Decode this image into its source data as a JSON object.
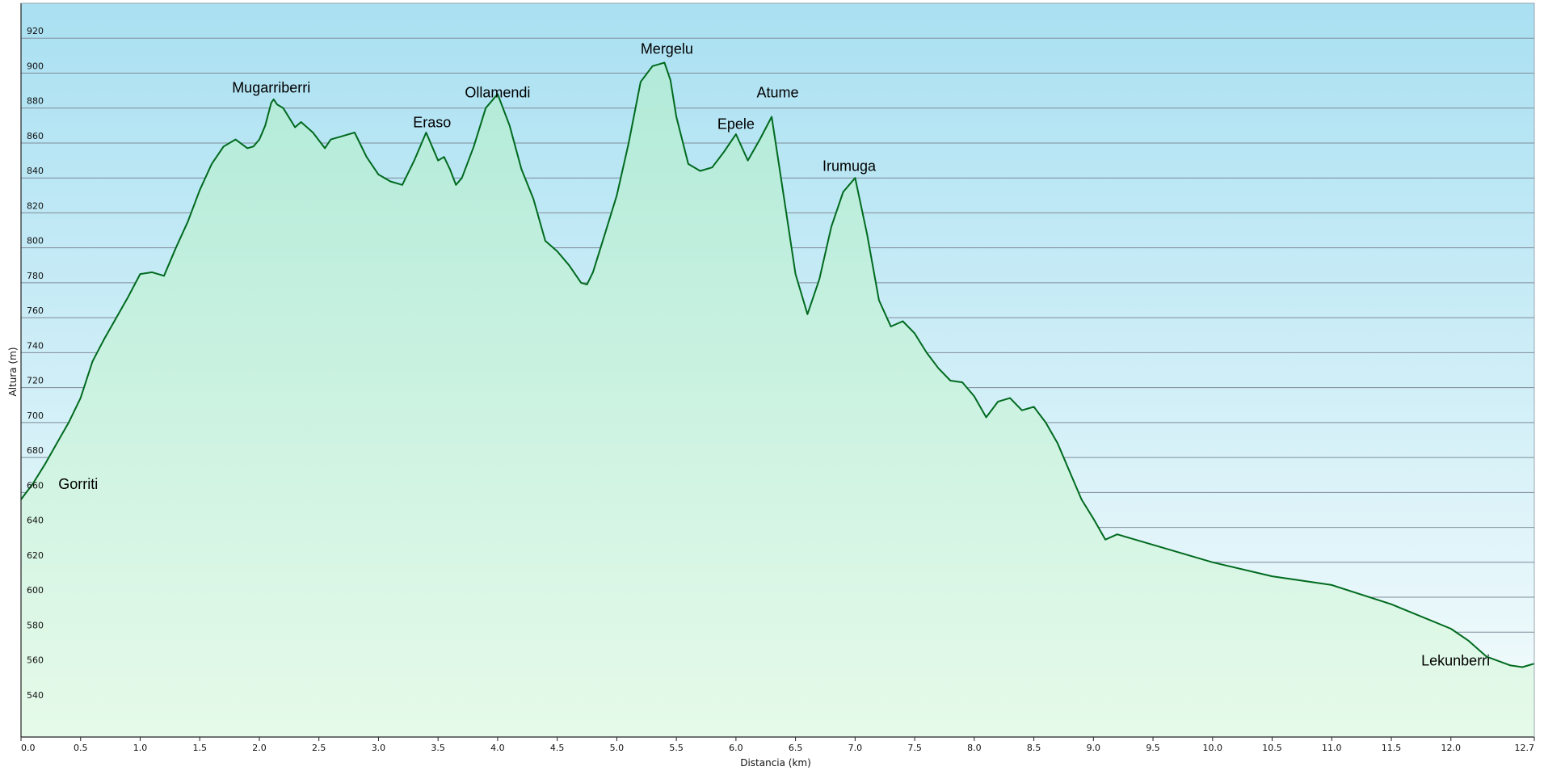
{
  "chart_data": {
    "type": "area",
    "title": "",
    "xlabel": "Distancia  (km)",
    "ylabel": "Altura (m)",
    "xlim": [
      0,
      12.7
    ],
    "ylim": [
      520,
      940
    ],
    "x_ticks": [
      0,
      0.5,
      1.0,
      1.5,
      2.0,
      2.5,
      3.0,
      3.5,
      4.0,
      4.5,
      5.0,
      5.5,
      6.0,
      6.5,
      7.0,
      7.5,
      8.0,
      8.5,
      9.0,
      9.5,
      10.0,
      10.5,
      11.0,
      11.5,
      12.0,
      12.7
    ],
    "x_tick_labels": [
      "0.0",
      "0.5",
      "1.0",
      "1.5",
      "2.0",
      "2.5",
      "3.0",
      "3.5",
      "4.0",
      "4.5",
      "5.0",
      "5.5",
      "6.0",
      "6.5",
      "7.0",
      "7.5",
      "8.0",
      "8.5",
      "9.0",
      "9.5",
      "10.0",
      "10.5",
      "11.0",
      "11.5",
      "12.0",
      "12.7"
    ],
    "y_ticks": [
      540,
      560,
      580,
      600,
      620,
      640,
      660,
      680,
      700,
      720,
      740,
      760,
      780,
      800,
      820,
      840,
      860,
      880,
      900,
      920
    ],
    "y_tick_labels": [
      "540",
      "560",
      "580",
      "600",
      "620",
      "640",
      "660",
      "680",
      "700",
      "720",
      "740",
      "760",
      "780",
      "800",
      "820",
      "840",
      "860",
      "880",
      "900",
      "920"
    ],
    "grid": true,
    "colors": {
      "line": "#006a1e",
      "fill_top": "#b2ead9",
      "fill_bottom": "#e6fae9",
      "sky_top": "#a9e0f2",
      "sky_bottom": "#f5fcfc",
      "grid": "#7f8c99"
    },
    "series": [
      {
        "x": [
          0,
          0.1,
          0.2,
          0.3,
          0.4,
          0.5,
          0.6,
          0.7,
          0.8,
          0.9,
          1.0,
          1.1,
          1.2,
          1.3,
          1.4,
          1.5,
          1.6,
          1.7,
          1.8,
          1.9,
          1.95,
          2.0,
          2.05,
          2.1,
          2.12,
          2.15,
          2.2,
          2.3,
          2.35,
          2.45,
          2.55,
          2.6,
          2.7,
          2.8,
          2.9,
          3.0,
          3.1,
          3.2,
          3.3,
          3.4,
          3.45,
          3.5,
          3.55,
          3.6,
          3.65,
          3.7,
          3.8,
          3.9,
          4.0,
          4.1,
          4.2,
          4.3,
          4.4,
          4.5,
          4.6,
          4.7,
          4.75,
          4.8,
          4.9,
          5.0,
          5.1,
          5.2,
          5.3,
          5.35,
          5.4,
          5.45,
          5.5,
          5.6,
          5.7,
          5.8,
          5.9,
          6.0,
          6.1,
          6.2,
          6.3,
          6.4,
          6.5,
          6.6,
          6.7,
          6.8,
          6.9,
          7.0,
          7.1,
          7.2,
          7.3,
          7.4,
          7.5,
          7.6,
          7.7,
          7.8,
          7.9,
          8.0,
          8.1,
          8.2,
          8.3,
          8.4,
          8.5,
          8.6,
          8.7,
          8.8,
          8.9,
          9.0,
          9.1,
          9.2,
          9.5,
          10.0,
          10.5,
          11.0,
          11.5,
          12.0,
          12.15,
          12.3,
          12.5,
          12.6,
          12.7
        ],
        "y": [
          656,
          665,
          676,
          688,
          700,
          714,
          735,
          748,
          760,
          772,
          785,
          786,
          784,
          800,
          815,
          833,
          848,
          858,
          862,
          857,
          858,
          862,
          870,
          883,
          885,
          882,
          880,
          869,
          872,
          866,
          857,
          862,
          864,
          866,
          852,
          842,
          838,
          836,
          850,
          866,
          858,
          850,
          852,
          845,
          836,
          840,
          858,
          880,
          888,
          870,
          845,
          828,
          804,
          798,
          790,
          780,
          779,
          786,
          808,
          830,
          860,
          895,
          904,
          905,
          906,
          896,
          875,
          848,
          844,
          846,
          855,
          865,
          850,
          862,
          875,
          830,
          785,
          762,
          782,
          812,
          832,
          840,
          808,
          770,
          755,
          758,
          751,
          740,
          731,
          724,
          723,
          715,
          703,
          712,
          714,
          707,
          709,
          700,
          688,
          672,
          656,
          645,
          633,
          636,
          630,
          620,
          612,
          607,
          596,
          582,
          575,
          566,
          561,
          560,
          562
        ]
      }
    ],
    "annotations": [
      {
        "text": "Gorriti",
        "x": 0.48,
        "y": 662
      },
      {
        "text": "Mugarriberri",
        "x": 2.1,
        "y": 889
      },
      {
        "text": "Eraso",
        "x": 3.45,
        "y": 869
      },
      {
        "text": "Ollamendi",
        "x": 4.0,
        "y": 886
      },
      {
        "text": "Mergelu",
        "x": 5.42,
        "y": 911
      },
      {
        "text": "Epele",
        "x": 6.0,
        "y": 868
      },
      {
        "text": "Atume",
        "x": 6.35,
        "y": 886
      },
      {
        "text": "Irumuga",
        "x": 6.95,
        "y": 844
      },
      {
        "text": "Lekunberri",
        "x": 12.04,
        "y": 561
      }
    ]
  }
}
